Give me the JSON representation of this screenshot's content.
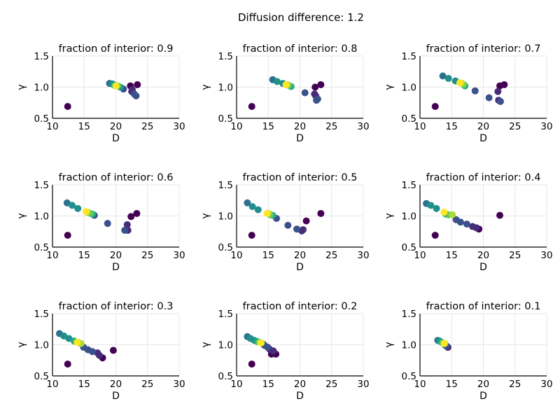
{
  "figure_title": "Diffusion difference: 1.2",
  "chart_data": [
    {
      "type": "scatter",
      "title": "fraction of interior: 0.9",
      "xlabel": "D",
      "ylabel": "γ",
      "xlim": [
        10,
        30
      ],
      "ylim": [
        0.5,
        1.5
      ],
      "xticks": [
        "10",
        "15",
        "20",
        "25",
        "30"
      ],
      "yticks": [
        "0.5",
        "1.0",
        "1.5"
      ],
      "points": [
        {
          "x": 12.4,
          "y": 0.69,
          "color": "#440154"
        },
        {
          "x": 22.3,
          "y": 1.02,
          "color": "#440154"
        },
        {
          "x": 23.4,
          "y": 1.04,
          "color": "#440154"
        },
        {
          "x": 22.5,
          "y": 0.93,
          "color": "#472c7a"
        },
        {
          "x": 22.6,
          "y": 0.96,
          "color": "#472c7a"
        },
        {
          "x": 22.9,
          "y": 0.89,
          "color": "#3b518b"
        },
        {
          "x": 23.2,
          "y": 0.86,
          "color": "#3b518b"
        },
        {
          "x": 21.2,
          "y": 0.97,
          "color": "#3b518b"
        },
        {
          "x": 19.0,
          "y": 1.06,
          "color": "#2c728e"
        },
        {
          "x": 19.5,
          "y": 1.05,
          "color": "#21908d"
        },
        {
          "x": 20.7,
          "y": 1.0,
          "color": "#21908d"
        },
        {
          "x": 19.8,
          "y": 1.03,
          "color": "#27ad81"
        },
        {
          "x": 20.3,
          "y": 1.02,
          "color": "#5cc863"
        },
        {
          "x": 20.1,
          "y": 1.02,
          "color": "#aadc32"
        },
        {
          "x": 20.0,
          "y": 1.02,
          "color": "#fde725"
        }
      ]
    },
    {
      "type": "scatter",
      "title": "fraction of interior: 0.8",
      "xlabel": "D",
      "ylabel": "γ",
      "xlim": [
        10,
        30
      ],
      "ylim": [
        0.5,
        1.5
      ],
      "xticks": [
        "10",
        "15",
        "20",
        "25",
        "30"
      ],
      "yticks": [
        "0.5",
        "1.0",
        "1.5"
      ],
      "points": [
        {
          "x": 12.4,
          "y": 0.69,
          "color": "#440154"
        },
        {
          "x": 23.3,
          "y": 1.04,
          "color": "#440154"
        },
        {
          "x": 22.4,
          "y": 1.0,
          "color": "#440154"
        },
        {
          "x": 22.3,
          "y": 0.89,
          "color": "#472c7a"
        },
        {
          "x": 22.5,
          "y": 0.86,
          "color": "#472c7a"
        },
        {
          "x": 22.8,
          "y": 0.81,
          "color": "#3b518b"
        },
        {
          "x": 22.6,
          "y": 0.79,
          "color": "#3b518b"
        },
        {
          "x": 20.8,
          "y": 0.91,
          "color": "#3b518b"
        },
        {
          "x": 15.7,
          "y": 1.12,
          "color": "#2c728e"
        },
        {
          "x": 16.4,
          "y": 1.09,
          "color": "#21908d"
        },
        {
          "x": 17.3,
          "y": 1.06,
          "color": "#21908d"
        },
        {
          "x": 18.6,
          "y": 1.01,
          "color": "#27ad81"
        },
        {
          "x": 18.2,
          "y": 1.03,
          "color": "#5cc863"
        },
        {
          "x": 18.0,
          "y": 1.04,
          "color": "#aadc32"
        },
        {
          "x": 17.8,
          "y": 1.04,
          "color": "#fde725"
        }
      ]
    },
    {
      "type": "scatter",
      "title": "fraction of interior: 0.7",
      "xlabel": "D",
      "ylabel": "γ",
      "xlim": [
        10,
        30
      ],
      "ylim": [
        0.5,
        1.5
      ],
      "xticks": [
        "10",
        "15",
        "20",
        "25",
        "30"
      ],
      "yticks": [
        "0.5",
        "1.0",
        "1.5"
      ],
      "points": [
        {
          "x": 12.4,
          "y": 0.69,
          "color": "#440154"
        },
        {
          "x": 23.3,
          "y": 1.04,
          "color": "#440154"
        },
        {
          "x": 22.6,
          "y": 1.02,
          "color": "#440154"
        },
        {
          "x": 22.3,
          "y": 0.93,
          "color": "#472c7a"
        },
        {
          "x": 22.4,
          "y": 0.79,
          "color": "#472c7a"
        },
        {
          "x": 22.7,
          "y": 0.77,
          "color": "#3b518b"
        },
        {
          "x": 20.9,
          "y": 0.83,
          "color": "#3b518b"
        },
        {
          "x": 18.7,
          "y": 0.94,
          "color": "#3b518b"
        },
        {
          "x": 13.6,
          "y": 1.18,
          "color": "#2c728e"
        },
        {
          "x": 14.5,
          "y": 1.14,
          "color": "#21908d"
        },
        {
          "x": 15.6,
          "y": 1.1,
          "color": "#21908d"
        },
        {
          "x": 17.1,
          "y": 1.02,
          "color": "#27ad81"
        },
        {
          "x": 16.9,
          "y": 1.04,
          "color": "#5cc863"
        },
        {
          "x": 16.6,
          "y": 1.06,
          "color": "#aadc32"
        },
        {
          "x": 16.3,
          "y": 1.07,
          "color": "#fde725"
        }
      ]
    },
    {
      "type": "scatter",
      "title": "fraction of interior: 0.6",
      "xlabel": "D",
      "ylabel": "γ",
      "xlim": [
        10,
        30
      ],
      "ylim": [
        0.5,
        1.5
      ],
      "xticks": [
        "10",
        "15",
        "20",
        "25",
        "30"
      ],
      "yticks": [
        "0.5",
        "1.0",
        "1.5"
      ],
      "points": [
        {
          "x": 12.4,
          "y": 0.69,
          "color": "#440154"
        },
        {
          "x": 23.3,
          "y": 1.04,
          "color": "#440154"
        },
        {
          "x": 22.4,
          "y": 0.99,
          "color": "#440154"
        },
        {
          "x": 21.8,
          "y": 0.86,
          "color": "#472c7a"
        },
        {
          "x": 21.9,
          "y": 0.77,
          "color": "#472c7a"
        },
        {
          "x": 21.4,
          "y": 0.77,
          "color": "#3b518b"
        },
        {
          "x": 18.7,
          "y": 0.88,
          "color": "#3b518b"
        },
        {
          "x": 16.6,
          "y": 1.01,
          "color": "#3b518b"
        },
        {
          "x": 12.3,
          "y": 1.21,
          "color": "#2c728e"
        },
        {
          "x": 13.1,
          "y": 1.17,
          "color": "#21908d"
        },
        {
          "x": 14.0,
          "y": 1.12,
          "color": "#21908d"
        },
        {
          "x": 16.3,
          "y": 1.03,
          "color": "#27ad81"
        },
        {
          "x": 16.0,
          "y": 1.04,
          "color": "#5cc863"
        },
        {
          "x": 15.5,
          "y": 1.06,
          "color": "#aadc32"
        },
        {
          "x": 15.3,
          "y": 1.07,
          "color": "#fde725"
        }
      ]
    },
    {
      "type": "scatter",
      "title": "fraction of interior: 0.5",
      "xlabel": "D",
      "ylabel": "γ",
      "xlim": [
        10,
        30
      ],
      "ylim": [
        0.5,
        1.5
      ],
      "xticks": [
        "10",
        "15",
        "20",
        "25",
        "30"
      ],
      "yticks": [
        "0.5",
        "1.0",
        "1.5"
      ],
      "points": [
        {
          "x": 12.4,
          "y": 0.69,
          "color": "#440154"
        },
        {
          "x": 23.3,
          "y": 1.04,
          "color": "#440154"
        },
        {
          "x": 21.0,
          "y": 0.92,
          "color": "#440154"
        },
        {
          "x": 20.5,
          "y": 0.78,
          "color": "#472c7a"
        },
        {
          "x": 20.3,
          "y": 0.76,
          "color": "#472c7a"
        },
        {
          "x": 19.5,
          "y": 0.79,
          "color": "#3b518b"
        },
        {
          "x": 18.1,
          "y": 0.85,
          "color": "#3b518b"
        },
        {
          "x": 16.3,
          "y": 0.96,
          "color": "#3b518b"
        },
        {
          "x": 11.7,
          "y": 1.21,
          "color": "#2c728e"
        },
        {
          "x": 12.5,
          "y": 1.15,
          "color": "#21908d"
        },
        {
          "x": 13.4,
          "y": 1.1,
          "color": "#21908d"
        },
        {
          "x": 15.7,
          "y": 1.01,
          "color": "#27ad81"
        },
        {
          "x": 15.3,
          "y": 1.02,
          "color": "#5cc863"
        },
        {
          "x": 15.0,
          "y": 1.04,
          "color": "#aadc32"
        },
        {
          "x": 14.8,
          "y": 1.04,
          "color": "#fde725"
        }
      ]
    },
    {
      "type": "scatter",
      "title": "fraction of interior: 0.4",
      "xlabel": "D",
      "ylabel": "γ",
      "xlim": [
        10,
        30
      ],
      "ylim": [
        0.5,
        1.5
      ],
      "xticks": [
        "10",
        "15",
        "20",
        "25",
        "30"
      ],
      "yticks": [
        "0.5",
        "1.0",
        "1.5"
      ],
      "points": [
        {
          "x": 12.4,
          "y": 0.69,
          "color": "#440154"
        },
        {
          "x": 22.6,
          "y": 1.01,
          "color": "#440154"
        },
        {
          "x": 19.3,
          "y": 0.79,
          "color": "#440154"
        },
        {
          "x": 18.9,
          "y": 0.81,
          "color": "#472c7a"
        },
        {
          "x": 18.3,
          "y": 0.83,
          "color": "#472c7a"
        },
        {
          "x": 17.4,
          "y": 0.87,
          "color": "#3b518b"
        },
        {
          "x": 16.4,
          "y": 0.9,
          "color": "#3b518b"
        },
        {
          "x": 15.7,
          "y": 0.94,
          "color": "#3b518b"
        },
        {
          "x": 11.0,
          "y": 1.2,
          "color": "#2c728e"
        },
        {
          "x": 11.7,
          "y": 1.17,
          "color": "#21908d"
        },
        {
          "x": 12.6,
          "y": 1.12,
          "color": "#21908d"
        },
        {
          "x": 14.1,
          "y": 1.03,
          "color": "#27ad81"
        },
        {
          "x": 14.5,
          "y": 1.02,
          "color": "#5cc863"
        },
        {
          "x": 15.1,
          "y": 1.02,
          "color": "#aadc32"
        },
        {
          "x": 13.8,
          "y": 1.06,
          "color": "#fde725"
        }
      ]
    },
    {
      "type": "scatter",
      "title": "fraction of interior: 0.3",
      "xlabel": "D",
      "ylabel": "γ",
      "xlim": [
        10,
        30
      ],
      "ylim": [
        0.5,
        1.5
      ],
      "xticks": [
        "10",
        "15",
        "20",
        "25",
        "30"
      ],
      "yticks": [
        "0.5",
        "1.0",
        "1.5"
      ],
      "points": [
        {
          "x": 12.4,
          "y": 0.69,
          "color": "#440154"
        },
        {
          "x": 19.6,
          "y": 0.91,
          "color": "#440154"
        },
        {
          "x": 17.9,
          "y": 0.79,
          "color": "#440154"
        },
        {
          "x": 17.4,
          "y": 0.83,
          "color": "#472c7a"
        },
        {
          "x": 17.1,
          "y": 0.87,
          "color": "#472c7a"
        },
        {
          "x": 16.3,
          "y": 0.89,
          "color": "#3b518b"
        },
        {
          "x": 15.6,
          "y": 0.92,
          "color": "#3b518b"
        },
        {
          "x": 14.9,
          "y": 0.96,
          "color": "#3b518b"
        },
        {
          "x": 11.1,
          "y": 1.18,
          "color": "#2c728e"
        },
        {
          "x": 11.8,
          "y": 1.14,
          "color": "#21908d"
        },
        {
          "x": 12.6,
          "y": 1.1,
          "color": "#21908d"
        },
        {
          "x": 13.4,
          "y": 1.06,
          "color": "#27ad81"
        },
        {
          "x": 14.0,
          "y": 1.04,
          "color": "#5cc863"
        },
        {
          "x": 14.5,
          "y": 1.02,
          "color": "#aadc32"
        },
        {
          "x": 13.9,
          "y": 1.04,
          "color": "#fde725"
        }
      ]
    },
    {
      "type": "scatter",
      "title": "fraction of interior: 0.2",
      "xlabel": "D",
      "ylabel": "γ",
      "xlim": [
        10,
        30
      ],
      "ylim": [
        0.5,
        1.5
      ],
      "xticks": [
        "10",
        "15",
        "20",
        "25",
        "30"
      ],
      "yticks": [
        "0.5",
        "1.0",
        "1.5"
      ],
      "points": [
        {
          "x": 12.4,
          "y": 0.69,
          "color": "#440154"
        },
        {
          "x": 16.2,
          "y": 0.85,
          "color": "#440154"
        },
        {
          "x": 15.5,
          "y": 0.85,
          "color": "#440154"
        },
        {
          "x": 15.8,
          "y": 0.9,
          "color": "#472c7a"
        },
        {
          "x": 15.2,
          "y": 0.93,
          "color": "#472c7a"
        },
        {
          "x": 14.9,
          "y": 0.96,
          "color": "#3b518b"
        },
        {
          "x": 14.4,
          "y": 0.99,
          "color": "#3b518b"
        },
        {
          "x": 14.2,
          "y": 1.01,
          "color": "#3b518b"
        },
        {
          "x": 11.7,
          "y": 1.13,
          "color": "#2c728e"
        },
        {
          "x": 12.2,
          "y": 1.1,
          "color": "#21908d"
        },
        {
          "x": 12.8,
          "y": 1.07,
          "color": "#21908d"
        },
        {
          "x": 13.3,
          "y": 1.05,
          "color": "#27ad81"
        },
        {
          "x": 13.6,
          "y": 1.04,
          "color": "#5cc863"
        },
        {
          "x": 13.9,
          "y": 1.03,
          "color": "#aadc32"
        },
        {
          "x": 13.8,
          "y": 1.03,
          "color": "#fde725"
        }
      ]
    },
    {
      "type": "scatter",
      "title": "fraction of interior: 0.1",
      "xlabel": "D",
      "ylabel": "γ",
      "xlim": [
        10,
        30
      ],
      "ylim": [
        0.5,
        1.5
      ],
      "xticks": [
        "10",
        "15",
        "20",
        "25",
        "30"
      ],
      "yticks": [
        "0.5",
        "1.0",
        "1.5"
      ],
      "points": [
        {
          "x": 14.4,
          "y": 0.96,
          "color": "#440154"
        },
        {
          "x": 14.3,
          "y": 0.97,
          "color": "#472c7a"
        },
        {
          "x": 14.2,
          "y": 0.98,
          "color": "#3b518b"
        },
        {
          "x": 14.0,
          "y": 0.99,
          "color": "#3b518b"
        },
        {
          "x": 12.8,
          "y": 1.07,
          "color": "#2c728e"
        },
        {
          "x": 13.1,
          "y": 1.06,
          "color": "#21908d"
        },
        {
          "x": 13.4,
          "y": 1.04,
          "color": "#27ad81"
        },
        {
          "x": 13.6,
          "y": 1.03,
          "color": "#5cc863"
        },
        {
          "x": 13.9,
          "y": 1.02,
          "color": "#aadc32"
        },
        {
          "x": 13.8,
          "y": 1.02,
          "color": "#fde725"
        }
      ]
    }
  ]
}
